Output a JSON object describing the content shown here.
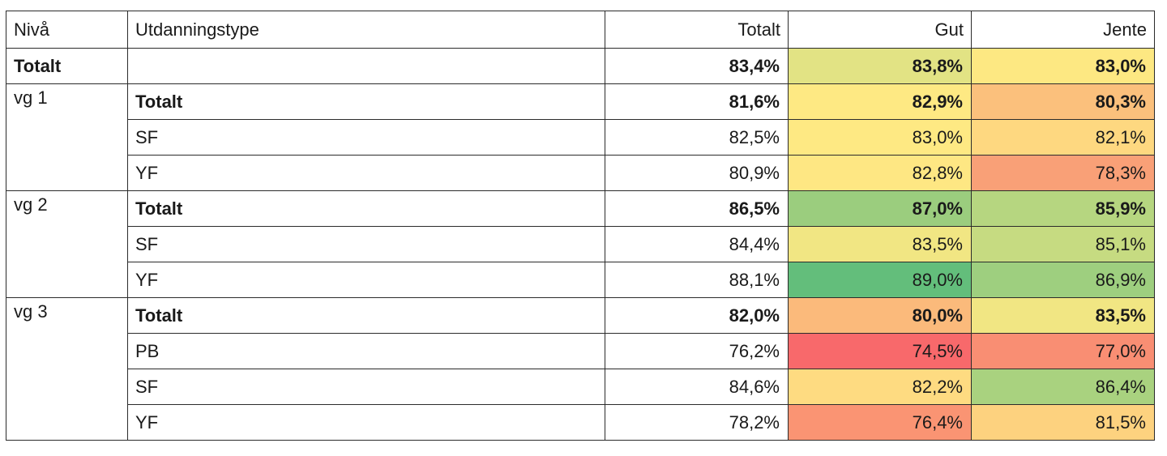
{
  "header": {
    "niva": "Nivå",
    "utdanningstype": "Utdanningstype",
    "totalt": "Totalt",
    "gut": "Gut",
    "jente": "Jente"
  },
  "grand_total": {
    "niva": "Totalt",
    "utdanningstype": "",
    "totalt": "83,4%",
    "gut": "83,8%",
    "jente": "83,0%",
    "gut_color": "#e2e384",
    "jente_color": "#fde882"
  },
  "groups": [
    {
      "niva": "vg 1",
      "rows": [
        {
          "type": "Totalt",
          "totalt": "81,6%",
          "gut": "82,9%",
          "jente": "80,3%",
          "gut_color": "#fee983",
          "jente_color": "#fbc07c",
          "bold": true
        },
        {
          "type": "SF",
          "totalt": "82,5%",
          "gut": "83,0%",
          "jente": "82,1%",
          "gut_color": "#fee983",
          "jente_color": "#fed880",
          "bold": false
        },
        {
          "type": "YF",
          "totalt": "80,9%",
          "gut": "82,8%",
          "jente": "78,3%",
          "gut_color": "#fee783",
          "jente_color": "#f9a077",
          "bold": false
        }
      ]
    },
    {
      "niva": "vg 2",
      "rows": [
        {
          "type": "Totalt",
          "totalt": "86,5%",
          "gut": "87,0%",
          "jente": "85,9%",
          "gut_color": "#9bcd7e",
          "jente_color": "#b6d680",
          "bold": true
        },
        {
          "type": "SF",
          "totalt": "84,4%",
          "gut": "83,5%",
          "jente": "85,1%",
          "gut_color": "#f1e683",
          "jente_color": "#c6db81",
          "bold": false
        },
        {
          "type": "YF",
          "totalt": "88,1%",
          "gut": "89,0%",
          "jente": "86,9%",
          "gut_color": "#63be7b",
          "jente_color": "#9ecf7f",
          "bold": false
        }
      ]
    },
    {
      "niva": "vg 3",
      "rows": [
        {
          "type": "Totalt",
          "totalt": "82,0%",
          "gut": "80,0%",
          "jente": "83,5%",
          "gut_color": "#fbba7b",
          "jente_color": "#f1e683",
          "bold": true
        },
        {
          "type": "PB",
          "totalt": "76,2%",
          "gut": "74,5%",
          "jente": "77,0%",
          "gut_color": "#f8696b",
          "jente_color": "#f98e73",
          "bold": false
        },
        {
          "type": "SF",
          "totalt": "84,6%",
          "gut": "82,2%",
          "jente": "86,4%",
          "gut_color": "#fedb81",
          "jente_color": "#a9d27f",
          "bold": false
        },
        {
          "type": "YF",
          "totalt": "78,2%",
          "gut": "76,4%",
          "jente": "81,5%",
          "gut_color": "#fa9473",
          "jente_color": "#fdd27f",
          "bold": false
        }
      ]
    }
  ]
}
